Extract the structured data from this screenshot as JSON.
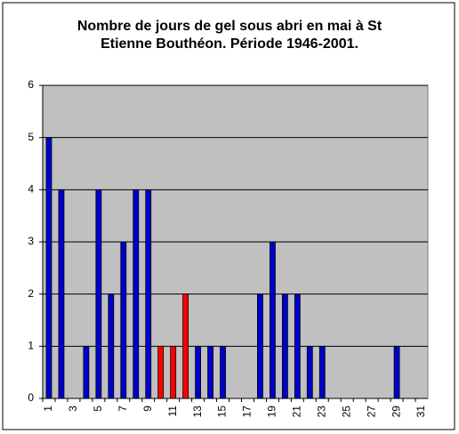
{
  "chart_data": {
    "type": "bar",
    "title": [
      "Nombre de jours de gel sous abri en mai à St",
      "Etienne Bouthéon. Période 1946-2001."
    ],
    "categories": [
      "1",
      null,
      "3",
      null,
      "5",
      null,
      "7",
      null,
      "9",
      null,
      "11",
      null,
      "13",
      null,
      "15",
      null,
      "17",
      null,
      "19",
      null,
      "21",
      null,
      "23",
      null,
      "25",
      null,
      "27",
      null,
      "29",
      null,
      "31"
    ],
    "values": [
      5,
      4,
      0,
      1,
      4,
      2,
      3,
      4,
      4,
      1,
      1,
      2,
      1,
      1,
      1,
      0,
      0,
      2,
      3,
      2,
      2,
      1,
      1,
      0,
      0,
      0,
      0,
      0,
      1,
      0,
      0
    ],
    "colors": [
      "#0000cc",
      "#0000cc",
      "#0000cc",
      "#0000cc",
      "#0000cc",
      "#0000cc",
      "#0000cc",
      "#0000cc",
      "#0000cc",
      "#ff0000",
      "#ff0000",
      "#ff0000",
      "#0000cc",
      "#0000cc",
      "#0000cc",
      "#0000cc",
      "#0000cc",
      "#0000cc",
      "#0000cc",
      "#0000cc",
      "#0000cc",
      "#0000cc",
      "#0000cc",
      "#0000cc",
      "#0000cc",
      "#0000cc",
      "#0000cc",
      "#0000cc",
      "#0000cc",
      "#0000cc",
      "#0000cc"
    ],
    "ylim": [
      0,
      6
    ],
    "yticks": [
      0,
      1,
      2,
      3,
      4,
      5,
      6
    ],
    "grid": true
  }
}
